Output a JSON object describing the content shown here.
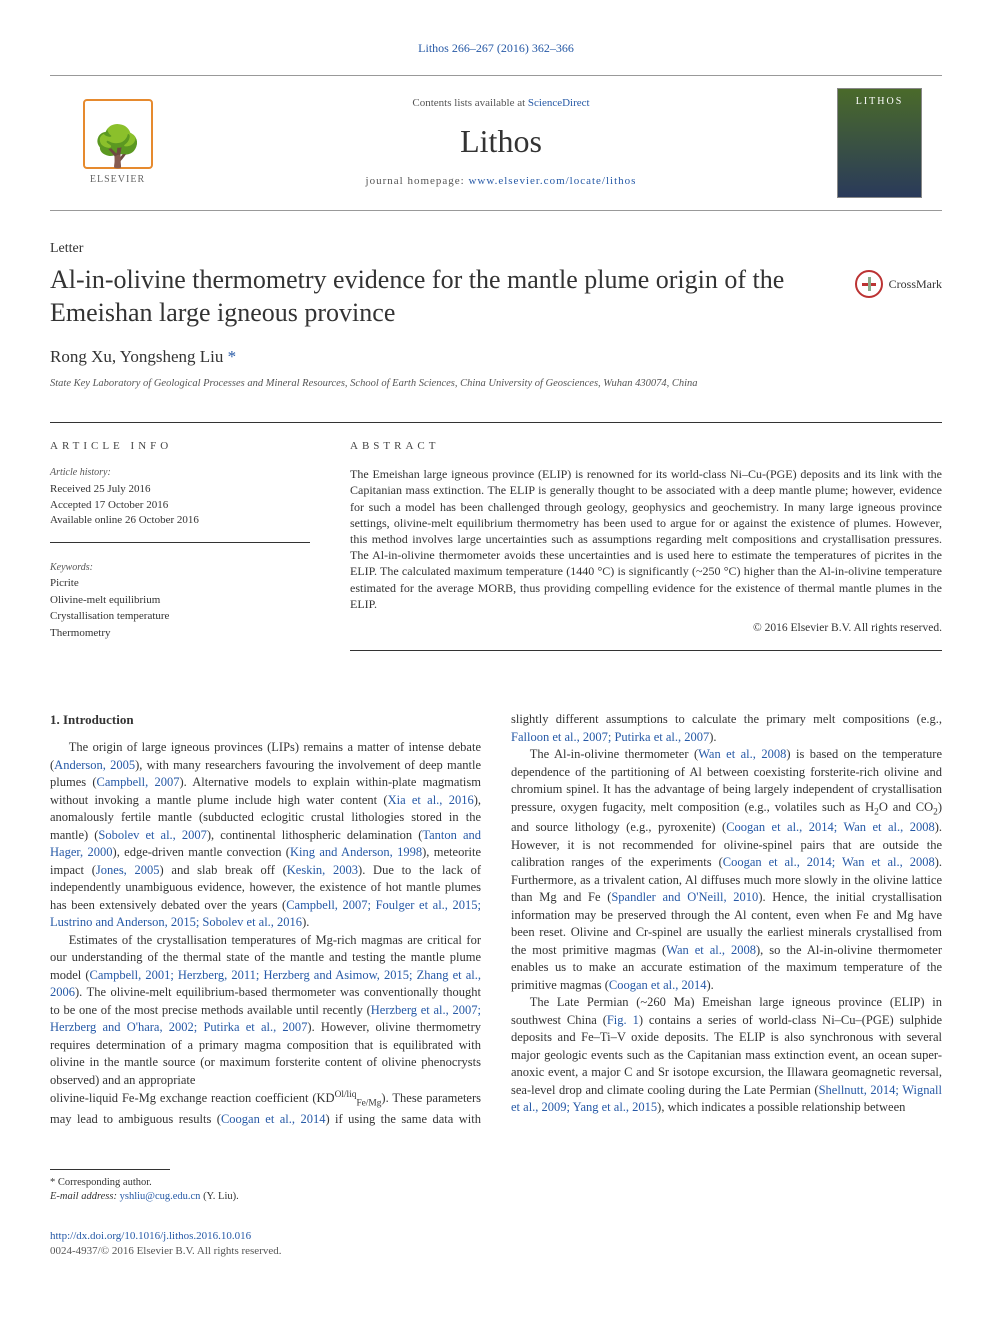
{
  "top_link": "Lithos 266–267 (2016) 362–366",
  "header": {
    "elsevier_label": "ELSEVIER",
    "avail_prefix": "Contents lists available at ",
    "avail_link": "ScienceDirect",
    "journal": "Lithos",
    "homepage_prefix": "journal homepage: ",
    "homepage_url": "www.elsevier.com/locate/lithos"
  },
  "article": {
    "type_label": "Letter",
    "title": "Al-in-olivine thermometry evidence for the mantle plume origin of the Emeishan large igneous province",
    "crossmark_label": "CrossMark",
    "authors_plain": "Rong Xu, Yongsheng Liu",
    "author1": "Rong Xu",
    "author2": "Yongsheng Liu ",
    "corresp_mark": "*",
    "affiliation": "State Key Laboratory of Geological Processes and Mineral Resources, School of Earth Sciences, China University of Geosciences, Wuhan 430074, China"
  },
  "info": {
    "heading": "article info",
    "history_label": "Article history:",
    "received": "Received 25 July 2016",
    "accepted": "Accepted 17 October 2016",
    "online": "Available online 26 October 2016",
    "keywords_label": "Keywords:",
    "keywords": [
      "Picrite",
      "Olivine-melt equilibrium",
      "Crystallisation temperature",
      "Thermometry"
    ]
  },
  "abstract": {
    "heading": "abstract",
    "text": "The Emeishan large igneous province (ELIP) is renowned for its world-class Ni–Cu-(PGE) deposits and its link with the Capitanian mass extinction. The ELIP is generally thought to be associated with a deep mantle plume; however, evidence for such a model has been challenged through geology, geophysics and geochemistry. In many large igneous province settings, olivine-melt equilibrium thermometry has been used to argue for or against the existence of plumes. However, this method involves large uncertainties such as assumptions regarding melt compositions and crystallisation pressures. The Al-in-olivine thermometer avoids these uncertainties and is used here to estimate the temperatures of picrites in the ELIP. The calculated maximum temperature (1440 °C) is significantly (~250 °C) higher than the Al-in-olivine temperature estimated for the average MORB, thus providing compelling evidence for the existence of thermal mantle plumes in the ELIP.",
    "copyright": "© 2016 Elsevier B.V. All rights reserved."
  },
  "body": {
    "section1_title": "1. Introduction",
    "p1_a": "The origin of large igneous provinces (LIPs) remains a matter of intense debate (",
    "p1_ref1": "Anderson, 2005",
    "p1_b": "), with many researchers favouring the involvement of deep mantle plumes (",
    "p1_ref2": "Campbell, 2007",
    "p1_c": "). Alternative models to explain within-plate magmatism without invoking a mantle plume include high water content (",
    "p1_ref3": "Xia et al., 2016",
    "p1_d": "), anomalously fertile mantle (subducted eclogitic crustal lithologies stored in the mantle) (",
    "p1_ref4": "Sobolev et al., 2007",
    "p1_e": "), continental lithospheric delamination (",
    "p1_ref5": "Tanton and Hager, 2000",
    "p1_f": "), edge-driven mantle convection (",
    "p1_ref6": "King and Anderson, 1998",
    "p1_g": "), meteorite impact (",
    "p1_ref7": "Jones, 2005",
    "p1_h": ") and slab break off (",
    "p1_ref8": "Keskin, 2003",
    "p1_i": "). Due to the lack of independently unambiguous evidence, however, the existence of hot mantle plumes has been extensively debated over the years (",
    "p1_ref9": "Campbell, 2007; Foulger et al., 2015; Lustrino and Anderson, 2015; Sobolev et al., 2016",
    "p1_j": ").",
    "p2_a": "Estimates of the crystallisation temperatures of Mg-rich magmas are critical for our understanding of the thermal state of the mantle and testing the mantle plume model (",
    "p2_ref1": "Campbell, 2001; Herzberg, 2011; Herzberg and Asimow, 2015; Zhang et al., 2006",
    "p2_b": "). The olivine-melt equilibrium-based thermometer was conventionally thought to be one of the most precise methods available until recently (",
    "p2_ref2": "Herzberg et al., 2007; Herzberg and O'hara, 2002; Putirka et al., 2007",
    "p2_c": "). However, olivine thermometry requires determination of a primary magma composition that is equilibrated with olivine in the mantle source (or maximum forsterite content of olivine phenocrysts observed) and an appropriate",
    "p2cont_a": "olivine-liquid Fe-Mg exchange reaction coefficient (KD",
    "p2cont_supersub": "Ol/liq Fe/Mg",
    "p2cont_b": "). These parameters may lead to ambiguous results (",
    "p2cont_ref1": "Coogan et al., 2014",
    "p2cont_c": ") if using the same data with slightly different assumptions to calculate the primary melt compositions (e.g., ",
    "p2cont_ref2": "Falloon et al., 2007; Putirka et al., 2007",
    "p2cont_d": ").",
    "p3_a": "The Al-in-olivine thermometer (",
    "p3_ref1": "Wan et al., 2008",
    "p3_b": ") is based on the temperature dependence of the partitioning of Al between coexisting forsterite-rich olivine and chromium spinel. It has the advantage of being largely independent of crystallisation pressure, oxygen fugacity, melt composition (e.g., volatiles such as H",
    "p3_sub1": "2",
    "p3_c": "O and CO",
    "p3_sub2": "2",
    "p3_d": ") and source lithology (e.g., pyroxenite) (",
    "p3_ref2": "Coogan et al., 2014; Wan et al., 2008",
    "p3_e": "). However, it is not recommended for olivine-spinel pairs that are outside the calibration ranges of the experiments (",
    "p3_ref3": "Coogan et al., 2014; Wan et al., 2008",
    "p3_f": "). Furthermore, as a trivalent cation, Al diffuses much more slowly in the olivine lattice than Mg and Fe (",
    "p3_ref4": "Spandler and O'Neill, 2010",
    "p3_g": "). Hence, the initial crystallisation information may be preserved through the Al content, even when Fe and Mg have been reset. Olivine and Cr-spinel are usually the earliest minerals crystallised from the most primitive magmas (",
    "p3_ref5": "Wan et al., 2008",
    "p3_h": "), so the Al-in-olivine thermometer enables us to make an accurate estimation of the maximum temperature of the primitive magmas (",
    "p3_ref6": "Coogan et al., 2014",
    "p3_i": ").",
    "p4_a": "The Late Permian (~260 Ma) Emeishan large igneous province (ELIP) in southwest China (",
    "p4_ref1": "Fig. 1",
    "p4_b": ") contains a series of world-class Ni–Cu–(PGE) sulphide deposits and Fe–Ti–V oxide deposits. The ELIP is also synchronous with several major geologic events such as the Capitanian mass extinction event, an ocean super-anoxic event, a major C and Sr isotope excursion, the Illawara geomagnetic reversal, sea-level drop and climate cooling during the Late Permian (",
    "p4_ref2": "Shellnutt, 2014; Wignall et al., 2009; Yang et al., 2015",
    "p4_c": "), which indicates a possible relationship between"
  },
  "footer": {
    "corresp_mark": "*",
    "corresp_label": " Corresponding author.",
    "email_label": "E-mail address: ",
    "email": "yshliu@cug.edu.cn",
    "email_who": " (Y. Liu).",
    "doi": "http://dx.doi.org/10.1016/j.lithos.2016.10.016",
    "issn_rights": "0024-4937/© 2016 Elsevier B.V. All rights reserved."
  },
  "colors": {
    "link": "#2659a6",
    "text": "#333333",
    "muted": "#555555",
    "rule": "#333333",
    "elsevier_orange": "#e68a2e"
  }
}
